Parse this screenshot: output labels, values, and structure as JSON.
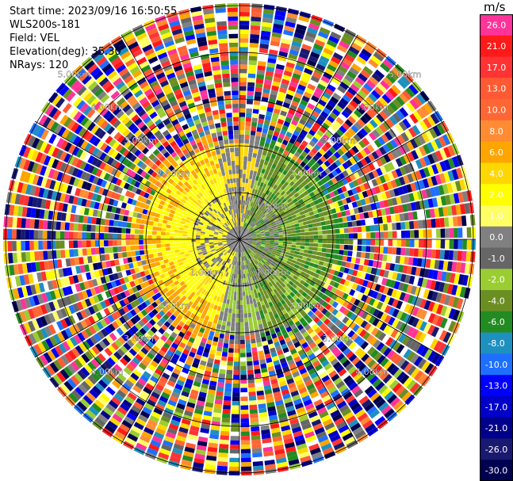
{
  "info": {
    "start_time": "Start time: 2023/09/16 16:50:55",
    "station": "WLS200s-181",
    "field": "Field: VEL",
    "elevation": "Elevation(deg): 35.30",
    "nrays": "NRays: 120"
  },
  "ppi": {
    "nrays": 120,
    "range_rings_km": [
      "1.00km",
      "2.00km",
      "3.00km",
      "4.00km",
      "5.00km"
    ],
    "ring_labels": [
      {
        "ring": 0,
        "label": "1.00km"
      },
      {
        "ring": 0,
        "label": "1.00km"
      },
      {
        "ring": 0,
        "label": "1.00km"
      },
      {
        "ring": 1,
        "label": "2.00km"
      },
      {
        "ring": 1,
        "label": "2.00km"
      },
      {
        "ring": 1,
        "label": "2.00km"
      },
      {
        "ring": 1,
        "label": "2.00km"
      },
      {
        "ring": 2,
        "label": "3.00km"
      },
      {
        "ring": 2,
        "label": "3.00km"
      },
      {
        "ring": 2,
        "label": "3.00km"
      },
      {
        "ring": 2,
        "label": "3.00km"
      },
      {
        "ring": 3,
        "label": "4.00km"
      },
      {
        "ring": 3,
        "label": "4.00km"
      },
      {
        "ring": 3,
        "label": "4.00km"
      },
      {
        "ring": 3,
        "label": "4.00km"
      },
      {
        "ring": 4,
        "label": "5.00km"
      },
      {
        "ring": 4,
        "label": "5.00km"
      }
    ]
  },
  "colorbar": {
    "unit": "m/s",
    "bins": [
      {
        "label": "26.0",
        "color": "#ff3399"
      },
      {
        "label": "21.0",
        "color": "#ff1a1a"
      },
      {
        "label": "17.0",
        "color": "#ff3333"
      },
      {
        "label": "13.0",
        "color": "#ff5a33"
      },
      {
        "label": "10.0",
        "color": "#ff6633"
      },
      {
        "label": "8.0",
        "color": "#ff8c33"
      },
      {
        "label": "6.0",
        "color": "#ffa500"
      },
      {
        "label": "4.0",
        "color": "#ffd700"
      },
      {
        "label": "2.0",
        "color": "#ffff00"
      },
      {
        "label": "1.0",
        "color": "#ffff66"
      },
      {
        "label": "0.0",
        "color": "#808080"
      },
      {
        "label": "-1.0",
        "color": "#666666"
      },
      {
        "label": "-2.0",
        "color": "#9acd32"
      },
      {
        "label": "-4.0",
        "color": "#6b8e23"
      },
      {
        "label": "-6.0",
        "color": "#228b22"
      },
      {
        "label": "-8.0",
        "color": "#1e90c0"
      },
      {
        "label": "-10.0",
        "color": "#1e6fff"
      },
      {
        "label": "-13.0",
        "color": "#0000ff"
      },
      {
        "label": "-17.0",
        "color": "#0000c8"
      },
      {
        "label": "-21.0",
        "color": "#00008b"
      },
      {
        "label": "-26.0",
        "color": "#191970"
      },
      {
        "label": "-30.0",
        "color": "#000050"
      }
    ]
  }
}
